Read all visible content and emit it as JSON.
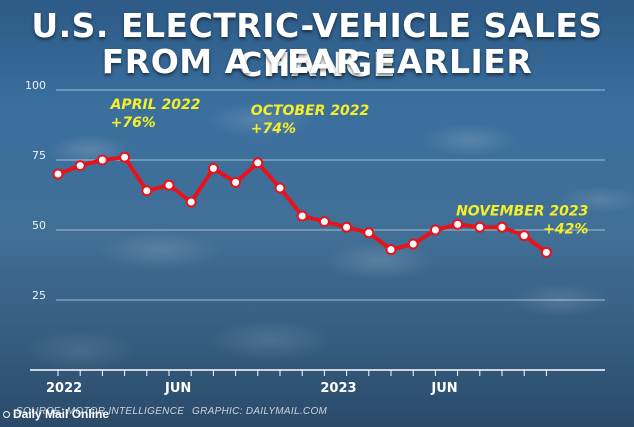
{
  "header": {
    "title_line1": "U.S. ELECTRIC-VEHICLE SALES CHANGE",
    "title_line2": "FROM A YEAR EARLIER"
  },
  "footer": {
    "source": "SOURCE: MOTOR INTELLIGENCE",
    "graphic": "GRAPHIC: DAILYMAIL.COM",
    "brand": "Daily Mail Online"
  },
  "colors": {
    "line": "#e8121b",
    "point_fill": "#ffffff",
    "annotation": "#f4ef2a",
    "gridline": "#ffffff",
    "tick_label": "#ffffff"
  },
  "chart_data": {
    "type": "line",
    "title": "U.S. ELECTRIC-VEHICLE SALES CHANGE FROM A YEAR EARLIER",
    "ylim": [
      0,
      100
    ],
    "y_ticks": [
      100,
      75,
      50,
      25,
      0
    ],
    "x_tick_labels": [
      "2022",
      "JUN",
      "2023",
      "JUN"
    ],
    "x_tick_month_index": [
      0,
      5,
      12,
      17
    ],
    "grid": true,
    "series": [
      {
        "values": [
          70,
          73,
          75,
          76,
          64,
          66,
          60,
          72,
          67,
          74,
          65,
          55,
          53,
          51,
          49,
          43,
          45,
          50,
          52,
          51,
          51,
          48,
          42
        ]
      }
    ],
    "annotations": [
      {
        "label": "APRIL 2022",
        "value_text": "+76%",
        "month_index": 3
      },
      {
        "label": "OCTOBER 2022",
        "value_text": "+74%",
        "month_index": 9
      },
      {
        "label": "NOVEMBER 2023",
        "value_text": "+42%",
        "month_index": 22
      }
    ]
  }
}
